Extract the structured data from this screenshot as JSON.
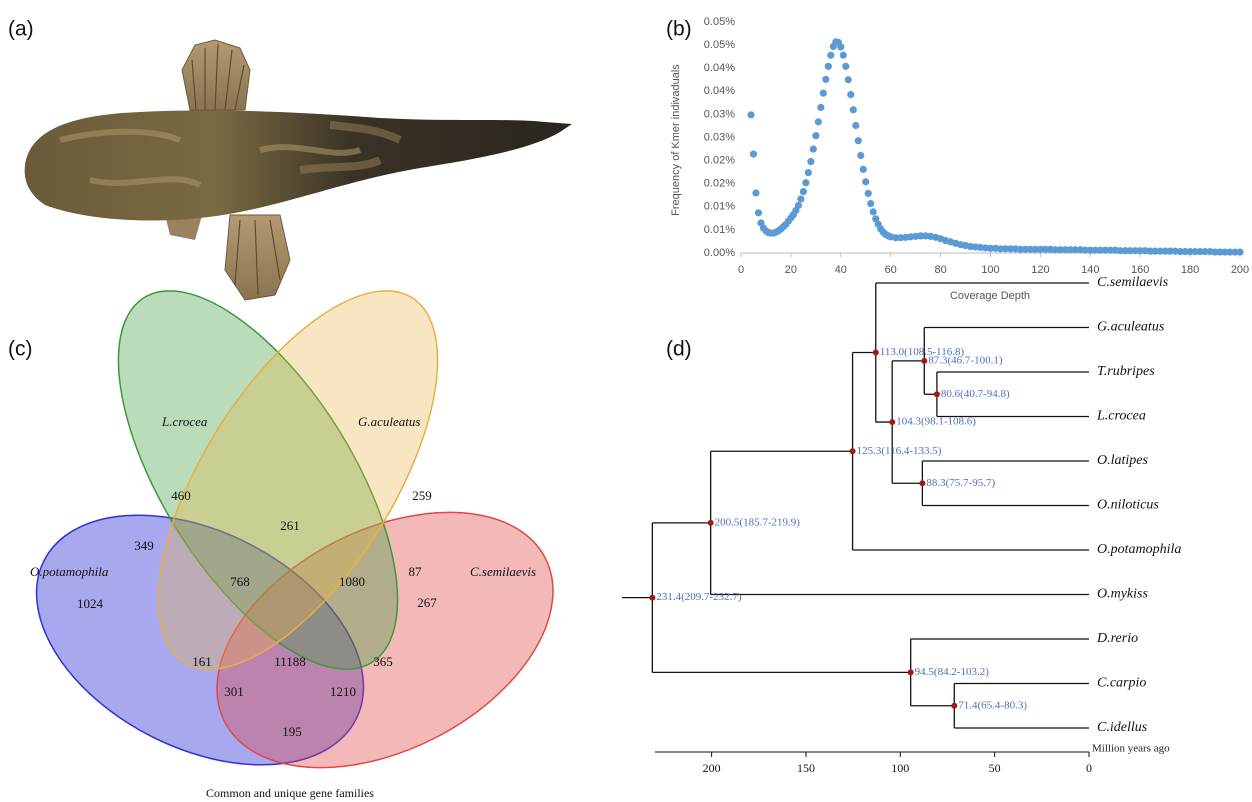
{
  "panel_labels": [
    "(a)",
    "(b)",
    "(c)",
    "(d)"
  ],
  "chart_data": {
    "type": "scatter",
    "x_label": "Coverage Depth",
    "y_label": "Frequency of Kmer indivaduals",
    "color": "#5b9bd5",
    "x": [
      4,
      5,
      6,
      7,
      8,
      9,
      10,
      11,
      12,
      13,
      14,
      15,
      16,
      17,
      18,
      19,
      20,
      21,
      22,
      23,
      24,
      25,
      26,
      27,
      28,
      29,
      30,
      31,
      32,
      33,
      34,
      35,
      36,
      37,
      38,
      39,
      40,
      41,
      42,
      43,
      44,
      45,
      46,
      47,
      48,
      49,
      50,
      51,
      52,
      53,
      54,
      55,
      56,
      57,
      58,
      59,
      60,
      62,
      64,
      66,
      68,
      70,
      72,
      74,
      76,
      78,
      80,
      82,
      84,
      86,
      88,
      90,
      92,
      94,
      96,
      98,
      100,
      102,
      104,
      106,
      108,
      110,
      112,
      114,
      116,
      118,
      120,
      122,
      124,
      126,
      128,
      130,
      132,
      134,
      136,
      138,
      140,
      142,
      144,
      146,
      148,
      150,
      152,
      154,
      156,
      158,
      160,
      162,
      164,
      166,
      168,
      170,
      172,
      174,
      176,
      178,
      180,
      182,
      184,
      186,
      188,
      190,
      192,
      194,
      196,
      198,
      200
    ],
    "values": [
      0.0299,
      0.0214,
      0.013,
      0.0087,
      0.0065,
      0.0054,
      0.0048,
      0.0044,
      0.0043,
      0.0043,
      0.0045,
      0.0048,
      0.0052,
      0.0057,
      0.0062,
      0.0069,
      0.0076,
      0.0083,
      0.0092,
      0.0103,
      0.0117,
      0.0133,
      0.0152,
      0.0174,
      0.0198,
      0.0225,
      0.0254,
      0.0284,
      0.0315,
      0.0346,
      0.0376,
      0.0404,
      0.0428,
      0.0447,
      0.0457,
      0.0456,
      0.0446,
      0.0428,
      0.0404,
      0.0375,
      0.0343,
      0.031,
      0.0276,
      0.0243,
      0.0211,
      0.0181,
      0.0154,
      0.0129,
      0.0107,
      0.0089,
      0.0074,
      0.0062,
      0.0052,
      0.0045,
      0.004,
      0.0037,
      0.0035,
      0.0033,
      0.0033,
      0.0034,
      0.0035,
      0.0036,
      0.0037,
      0.0037,
      0.0036,
      0.0034,
      0.0031,
      0.0027,
      0.0024,
      0.0021,
      0.0018,
      0.0016,
      0.0014,
      0.0013,
      0.0012,
      0.0011,
      0.001,
      0.001,
      0.0009,
      0.0009,
      0.0009,
      0.0009,
      0.0008,
      0.0008,
      0.0008,
      0.0008,
      0.0008,
      0.0008,
      0.0008,
      0.0007,
      0.0007,
      0.0007,
      0.0007,
      0.0007,
      0.0007,
      0.0006,
      0.0006,
      0.0006,
      0.0006,
      0.0006,
      0.0006,
      0.0006,
      0.0005,
      0.0005,
      0.0005,
      0.0005,
      0.0005,
      0.0005,
      0.0004,
      0.0004,
      0.0004,
      0.0004,
      0.0004,
      0.0004,
      0.0003,
      0.0003,
      0.0003,
      0.0003,
      0.0003,
      0.0003,
      0.0003,
      0.0002,
      0.0002,
      0.0002,
      0.0002,
      0.0002,
      0.0002
    ],
    "xlim": [
      0,
      200
    ],
    "xticks": [
      0,
      20,
      40,
      60,
      80,
      100,
      120,
      140,
      160,
      180,
      200
    ],
    "ylim": [
      0,
      0.05
    ],
    "yticks": [
      {
        "value": 0,
        "label": "0.00%"
      },
      {
        "value": 0.005,
        "label": "0.01%"
      },
      {
        "value": 0.01,
        "label": "0.01%"
      },
      {
        "value": 0.015,
        "label": "0.02%"
      },
      {
        "value": 0.02,
        "label": "0.02%"
      },
      {
        "value": 0.025,
        "label": "0.03%"
      },
      {
        "value": 0.03,
        "label": "0.03%"
      },
      {
        "value": 0.035,
        "label": "0.04%"
      },
      {
        "value": 0.04,
        "label": "0.04%"
      },
      {
        "value": 0.045,
        "label": "0.05%"
      },
      {
        "value": 0.05,
        "label": "0.05%"
      }
    ]
  },
  "venn": {
    "caption": "Common and unique gene families",
    "sets": [
      {
        "name": "O.potamophila",
        "color": "#3030d8"
      },
      {
        "name": "C.semilaevis",
        "color": "#e04848"
      },
      {
        "name": "L.crocea",
        "color": "#3a9a3a"
      },
      {
        "name": "G.aculeatus",
        "color": "#e8b040"
      }
    ],
    "counts": [
      460,
      261,
      259,
      349,
      87,
      768,
      1080,
      1024,
      267,
      161,
      11188,
      365,
      301,
      1210,
      195
    ]
  },
  "tree": {
    "root": {
      "age": 231.4,
      "label": "231.4(209.7-232.7)",
      "children": [
        {
          "age": 200.5,
          "label": "200.5(185.7-219.9)",
          "children": [
            {
              "age": 125.3,
              "label": "125.3(116.4-133.5)",
              "children": [
                {
                  "age": 113.0,
                  "label": "113.0(108.5-116.8)",
                  "children": [
                    {
                      "name": "C.semilaevis"
                    },
                    {
                      "age": 104.3,
                      "label": "104.3(98.1-108.6)",
                      "children": [
                        {
                          "age": 87.3,
                          "label": "87.3(46.7-100.1)",
                          "children": [
                            {
                              "name": "G.aculeatus"
                            },
                            {
                              "age": 80.6,
                              "label": "80.6(40.7-94.8)",
                              "children": [
                                {
                                  "name": "T.rubripes"
                                },
                                {
                                  "name": "L.crocea"
                                }
                              ]
                            }
                          ]
                        },
                        {
                          "age": 88.3,
                          "label": "88.3(75.7-95.7)",
                          "children": [
                            {
                              "name": "O.latipes"
                            },
                            {
                              "name": "O.niloticus"
                            }
                          ]
                        }
                      ]
                    }
                  ]
                },
                {
                  "name": "O.potamophila"
                }
              ]
            },
            {
              "name": "O.mykiss"
            }
          ]
        },
        {
          "age": 94.5,
          "label": "94.5(84.2-103.2)",
          "children": [
            {
              "name": "D.rerio"
            },
            {
              "age": 71.4,
              "label": "71.4(65.4-80.3)",
              "children": [
                {
                  "name": "C.carpio"
                },
                {
                  "name": "C.idellus"
                }
              ]
            }
          ]
        }
      ]
    },
    "axis": {
      "label": "Million years ago",
      "lim": [
        230,
        0
      ],
      "ticks": [
        200,
        150,
        100,
        50,
        0
      ]
    }
  }
}
